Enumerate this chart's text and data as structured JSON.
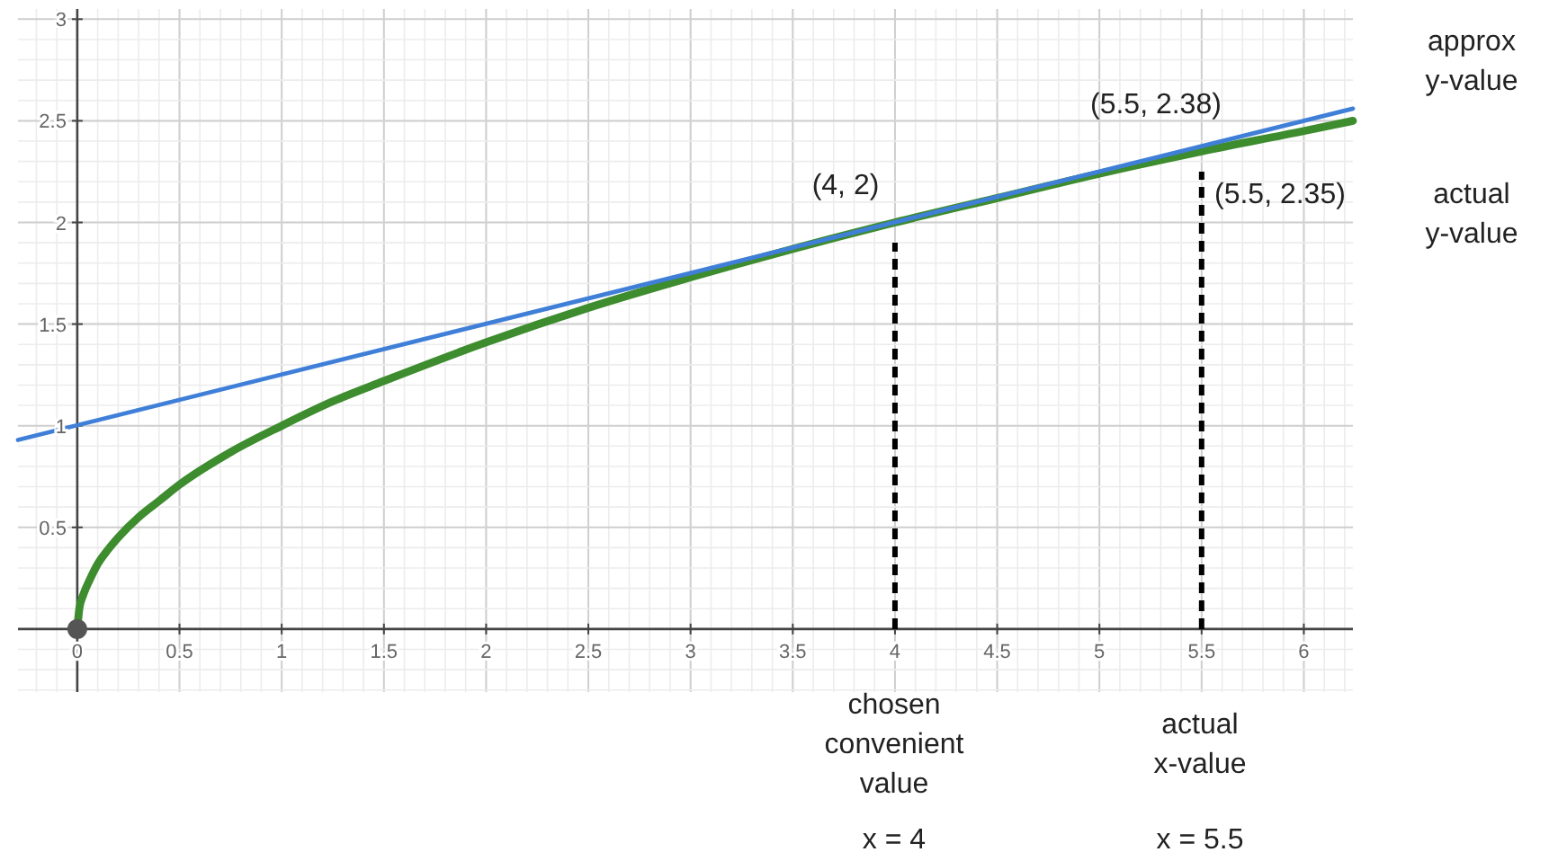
{
  "chart_data": {
    "type": "line",
    "xlim": [
      -0.29,
      6.24
    ],
    "ylim": [
      -0.31,
      3.05
    ],
    "xticks": [
      0,
      0.5,
      1,
      1.5,
      2,
      2.5,
      3,
      3.5,
      4,
      4.5,
      5,
      5.5,
      6
    ],
    "yticks": [
      0.5,
      1,
      1.5,
      2,
      2.5,
      3
    ],
    "grid": true,
    "marker": "none",
    "line_style": "solid",
    "series": [
      {
        "color": "#3d8c2e",
        "x": [
          0,
          0.01,
          0.03,
          0.06,
          0.1,
          0.15,
          0.2,
          0.3,
          0.4,
          0.5,
          0.75,
          1,
          1.25,
          1.5,
          2,
          2.5,
          3,
          3.5,
          4,
          4.5,
          5,
          5.5,
          6,
          6.24
        ],
        "values": [
          0,
          0.1,
          0.17,
          0.24,
          0.32,
          0.39,
          0.45,
          0.55,
          0.63,
          0.71,
          0.87,
          1,
          1.12,
          1.22,
          1.41,
          1.58,
          1.73,
          1.87,
          2,
          2.12,
          2.24,
          2.35,
          2.45,
          2.5
        ]
      },
      {
        "color": "#3f7fd8",
        "x": [
          -0.29,
          6.24
        ],
        "values": [
          0.93,
          2.56
        ]
      },
      {
        "color": "#000000",
        "line_style": "dashed",
        "x": [
          4,
          4
        ],
        "values": [
          0,
          1.9
        ]
      },
      {
        "color": "#000000",
        "line_style": "dashed",
        "x": [
          5.5,
          5.5
        ],
        "values": [
          0,
          2.25
        ]
      },
      {
        "type": "scatter",
        "color": "#555555",
        "marker": "circle",
        "x": [
          0
        ],
        "values": [
          0
        ]
      }
    ],
    "annotations": [
      "(4, 2)",
      "(5.5, 2.38)",
      "(5.5, 2.35)",
      "approx y-value",
      "actual y-value",
      "chosen convenient value",
      "x = 4",
      "actual x-value",
      "x = 5.5"
    ]
  }
}
